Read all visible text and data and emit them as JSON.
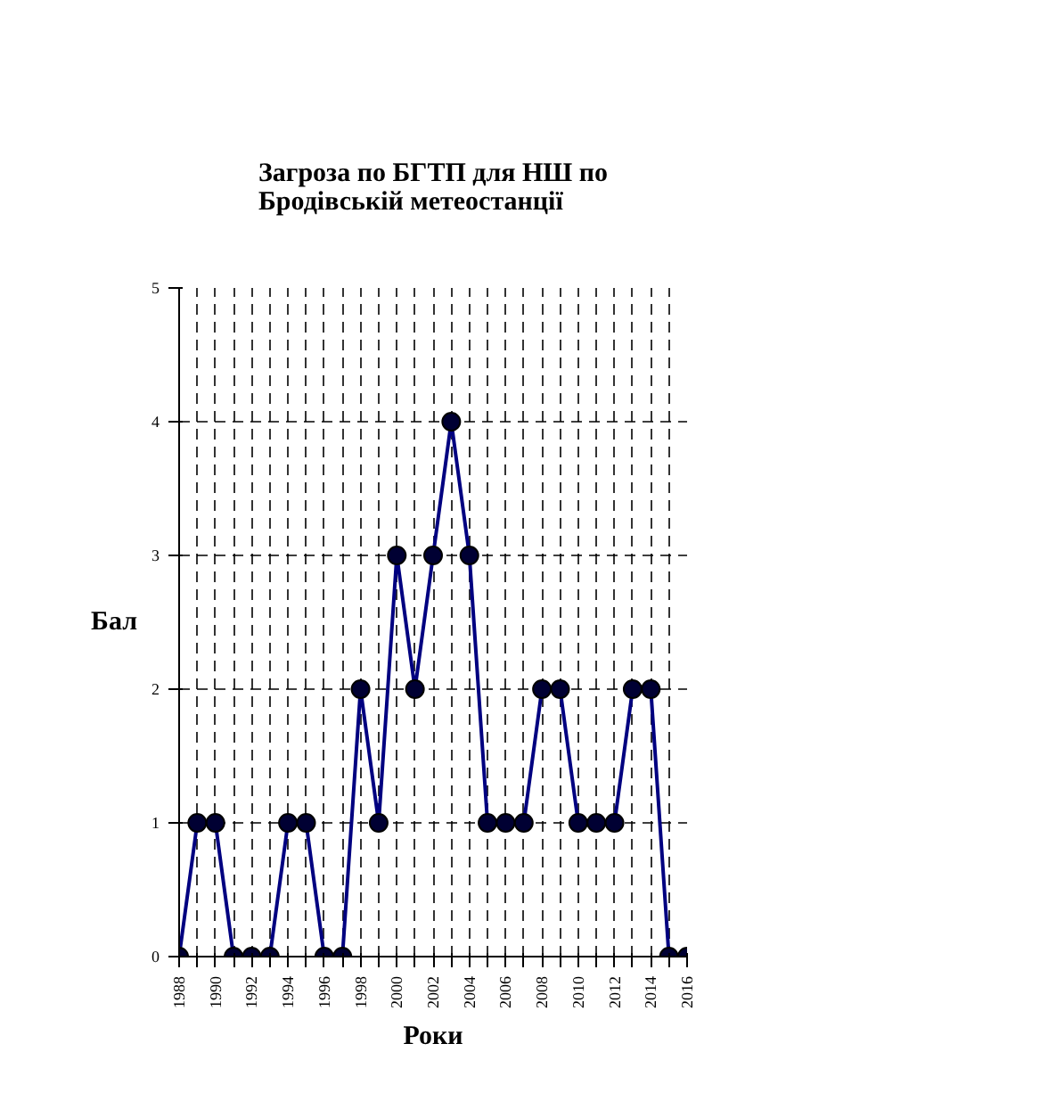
{
  "chart_data": {
    "type": "line",
    "title": "Загроза по БГТП для НШ по\nБродівській метеостанції",
    "xlabel": "Роки",
    "ylabel": "Бал",
    "x": [
      1988,
      1989,
      1990,
      1991,
      1992,
      1993,
      1994,
      1995,
      1996,
      1997,
      1998,
      1999,
      2000,
      2001,
      2002,
      2003,
      2004,
      2005,
      2006,
      2007,
      2008,
      2009,
      2010,
      2011,
      2012,
      2013,
      2014,
      2015,
      2016
    ],
    "series": [
      {
        "color": "#000080",
        "values": [
          0,
          1,
          1,
          0,
          0,
          0,
          1,
          1,
          0,
          0,
          2,
          1,
          3,
          2,
          3,
          4,
          3,
          1,
          1,
          1,
          2,
          2,
          1,
          1,
          1,
          2,
          2,
          0,
          0
        ]
      }
    ],
    "xlim": [
      1988,
      2016
    ],
    "xticks": [
      1988,
      {
        "value": 1989,
        "label": null
      },
      1990,
      {
        "value": 1991,
        "label": null
      },
      1992,
      {
        "value": 1993,
        "label": null
      },
      1994,
      {
        "value": 1995,
        "label": null
      },
      1996,
      {
        "value": 1997,
        "label": null
      },
      1998,
      {
        "value": 1999,
        "label": null
      },
      2000,
      {
        "value": 2001,
        "label": null
      },
      2002,
      {
        "value": 2003,
        "label": null
      },
      2004,
      {
        "value": 2005,
        "label": null
      },
      2006,
      {
        "value": 2007,
        "label": null
      },
      2008,
      {
        "value": 2009,
        "label": null
      },
      2010,
      {
        "value": 2011,
        "label": null
      },
      2012,
      {
        "value": 2013,
        "label": null
      },
      2014,
      {
        "value": 2015,
        "label": null
      },
      2016
    ],
    "ylim": [
      0,
      5
    ],
    "yticks": [
      0,
      1,
      2,
      3,
      4,
      5
    ],
    "grid": true,
    "marker": "circle",
    "line_style": "solid"
  }
}
